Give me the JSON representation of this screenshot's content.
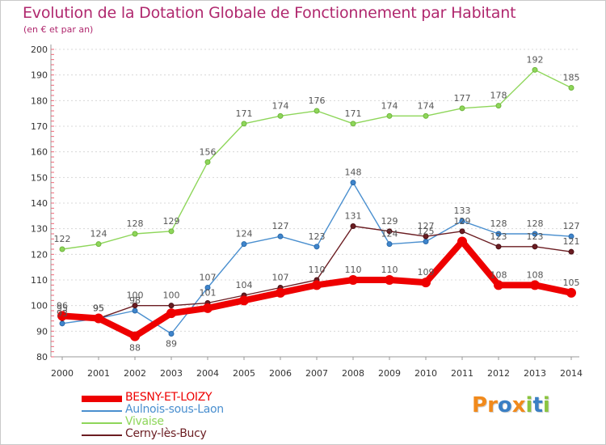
{
  "title": "Evolution de la Dotation Globale de Fonctionnement par Habitant",
  "subtitle": "(en € et par an)",
  "chart_data": {
    "type": "line",
    "title": "Evolution de la Dotation Globale de Fonctionnement par Habitant",
    "subtitle": "(en € et par an)",
    "xlabel": "",
    "ylabel": "",
    "ylim": [
      80,
      200
    ],
    "yticks": [
      80,
      90,
      100,
      110,
      120,
      130,
      140,
      150,
      160,
      170,
      180,
      190,
      200
    ],
    "categories": [
      "2000",
      "2001",
      "2002",
      "2003",
      "2004",
      "2005",
      "2006",
      "2007",
      "2008",
      "2009",
      "2010",
      "2011",
      "2012",
      "2013",
      "2014"
    ],
    "legend_position": "bottom-left",
    "series": [
      {
        "name": "BESNY-ET-LOIZY",
        "color": "#ee0000",
        "values": [
          96,
          95,
          88,
          97,
          99,
          102,
          105,
          108,
          110,
          110,
          109,
          125,
          108,
          108,
          105
        ],
        "labels": [
          "96",
          "95",
          "88",
          "",
          "",
          "",
          "",
          "",
          "110",
          "110",
          "109",
          "",
          "108",
          "108",
          "105"
        ]
      },
      {
        "name": "Aulnois-sous-Laon",
        "color": "#4a8fcf",
        "values": [
          93,
          95,
          98,
          89,
          107,
          124,
          127,
          123,
          148,
          124,
          125,
          133,
          128,
          128,
          127
        ],
        "labels": [
          "93",
          "95",
          "98",
          "89",
          "107",
          "124",
          "127",
          "123",
          "148",
          "124",
          "125",
          "133",
          "128",
          "128",
          "127"
        ]
      },
      {
        "name": "Vivaise",
        "color": "#8ed65a",
        "values": [
          122,
          124,
          128,
          129,
          156,
          171,
          174,
          176,
          171,
          174,
          174,
          177,
          178,
          192,
          185
        ],
        "labels": [
          "122",
          "124",
          "128",
          "129",
          "156",
          "171",
          "174",
          "176",
          "171",
          "174",
          "174",
          "177",
          "178",
          "192",
          "185"
        ]
      },
      {
        "name": "Cerny-lès-Bucy",
        "color": "#6b1d22",
        "values": [
          95,
          95,
          100,
          100,
          101,
          104,
          107,
          110,
          131,
          129,
          127,
          129,
          123,
          123,
          121
        ],
        "labels": [
          "95",
          "95",
          "100",
          "100",
          "101",
          "104",
          "107",
          "110",
          "131",
          "129",
          "127",
          "129",
          "123",
          "123",
          "121"
        ]
      }
    ]
  },
  "logo": {
    "letters": [
      {
        "ch": "P",
        "color": "#f18a1c"
      },
      {
        "ch": "r",
        "color": "#f18a1c"
      },
      {
        "ch": "o",
        "color": "#3a7fc4"
      },
      {
        "ch": "x",
        "color": "#f18a1c"
      },
      {
        "ch": "i",
        "color": "#8bc43f"
      },
      {
        "ch": "t",
        "color": "#3a7fc4"
      },
      {
        "ch": "i",
        "color": "#8bc43f"
      }
    ]
  }
}
